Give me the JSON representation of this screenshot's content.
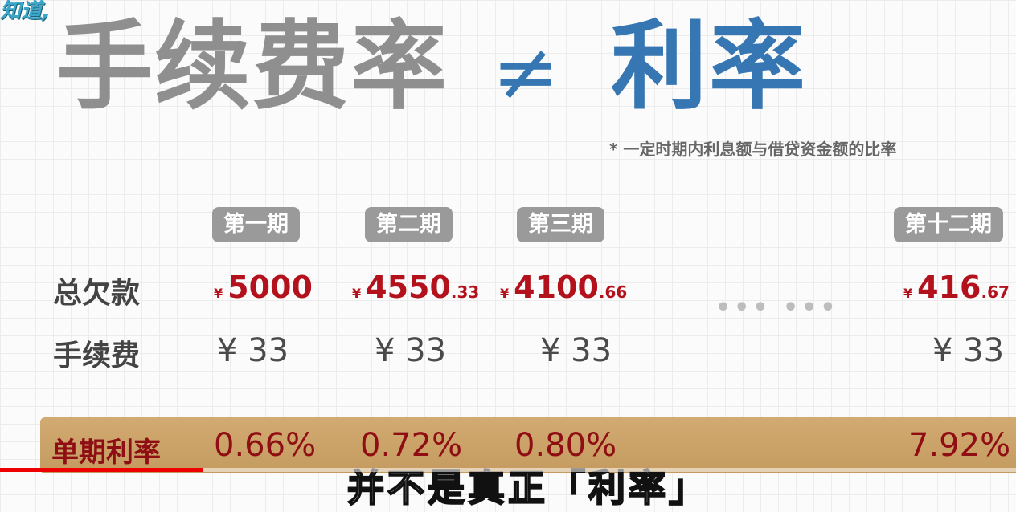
{
  "logo": {
    "text": "知道,"
  },
  "title": {
    "left": "手续费率",
    "neq": "≠",
    "right": "利率"
  },
  "footnote": "* 一定时期内利息额与借贷资金额的比率",
  "periods": [
    "第一期",
    "第二期",
    "第三期",
    "第十二期"
  ],
  "labels": {
    "total_debt": "总欠款",
    "fee": "手续费",
    "rate": "单期利率"
  },
  "debts": [
    {
      "cur": "¥",
      "int": "5000",
      "dec": ""
    },
    {
      "cur": "¥",
      "int": "4550",
      "dec": ".33"
    },
    {
      "cur": "¥",
      "int": "4100",
      "dec": ".66"
    },
    {
      "cur": "¥",
      "int": "416",
      "dec": ".67"
    }
  ],
  "fees": [
    "¥ 33",
    "¥ 33",
    "¥ 33",
    "¥ 33"
  ],
  "ellipsis": "••• •••",
  "rates": [
    "0.66%",
    "0.72%",
    "0.80%",
    "7.92%"
  ],
  "subtitle": "并不是真正「利率」",
  "video_progress": 0.2,
  "colors": {
    "accent_blue": "#3677b3",
    "accent_red": "#b3111b",
    "band_gold": "#c9a063"
  }
}
